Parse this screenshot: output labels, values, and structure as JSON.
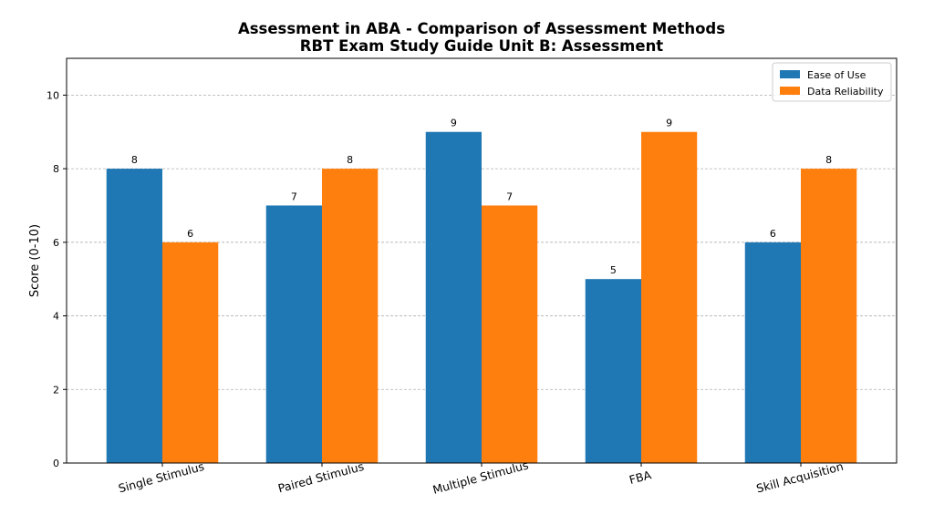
{
  "chart_data": {
    "type": "bar",
    "title": "Assessment in ABA - Comparison of Assessment Methods",
    "subtitle": "RBT Exam Study Guide Unit B: Assessment",
    "xlabel": "",
    "ylabel": "Score (0-10)",
    "categories": [
      "Single Stimulus",
      "Paired Stimulus",
      "Multiple Stimulus",
      "FBA",
      "Skill Acquisition"
    ],
    "series": [
      {
        "name": "Ease of Use",
        "values": [
          8,
          7,
          9,
          5,
          6
        ],
        "color": "#1f77b4"
      },
      {
        "name": "Data Reliability",
        "values": [
          6,
          8,
          7,
          9,
          8
        ],
        "color": "#ff7f0e"
      }
    ],
    "ylim": [
      0,
      11
    ],
    "yticks": [
      0,
      2,
      4,
      6,
      8,
      10
    ],
    "grid": "y-dashed",
    "legend": "top-right",
    "x_tick_rotation": "rotated"
  }
}
